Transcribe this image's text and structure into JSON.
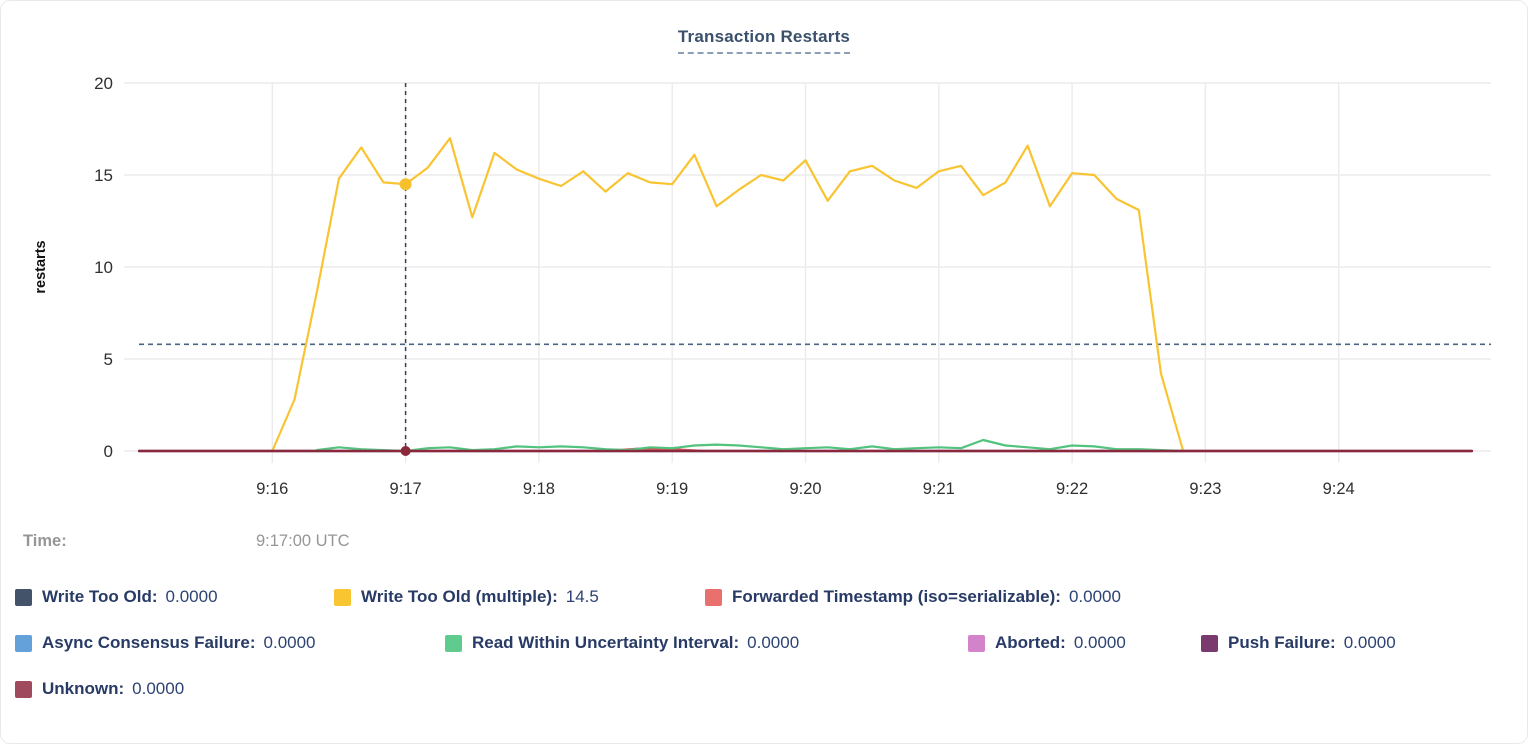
{
  "title": "Transaction Restarts",
  "hover": {
    "time_label": "Time:",
    "time_value": "9:17:00 UTC"
  },
  "colors": {
    "title": "#3b506b",
    "grid": "#ebebeb",
    "tick_text": "#2f2f2f",
    "crosshair": "#31435c",
    "reference_line": "#4a6584",
    "time_text": "#969696",
    "legend_text": "#283a66"
  },
  "legend": {
    "rows": [
      [
        {
          "label": "Write Too Old:",
          "value": "0.0000",
          "color": "#42536a"
        },
        {
          "label": "Write Too Old (multiple):",
          "value": "14.5",
          "color": "#f9c531"
        },
        {
          "label": "Forwarded Timestamp (iso=serializable):",
          "value": "0.0000",
          "color": "#e9706d"
        }
      ],
      [
        {
          "label": "Async Consensus Failure:",
          "value": "0.0000",
          "color": "#64a0d9"
        },
        {
          "label": "Read Within Uncertainty Interval:",
          "value": "0.0000",
          "color": "#5fcb8e"
        },
        {
          "label": "Aborted:",
          "value": "0.0000",
          "color": "#d283c9"
        },
        {
          "label": "Push Failure:",
          "value": "0.0000",
          "color": "#7a3a6e"
        }
      ],
      [
        {
          "label": "Unknown:",
          "value": "0.0000",
          "color": "#a04a5d"
        }
      ]
    ]
  },
  "chart_data": {
    "type": "line",
    "title": "Transaction Restarts",
    "ylabel": "restarts",
    "ylim": [
      0,
      20
    ],
    "y_ticks": [
      0,
      5,
      10,
      15,
      20
    ],
    "x_tick_labels": [
      "9:16",
      "9:17",
      "9:18",
      "9:19",
      "9:20",
      "9:21",
      "9:22",
      "9:23",
      "9:24"
    ],
    "x_domain_utc": [
      "9:15:00",
      "9:25:00"
    ],
    "grid": true,
    "legend_position": "bottom",
    "reference_line_y": 5.8,
    "crosshair": {
      "time": "9:17:00 UTC",
      "t_s": 120
    },
    "series": [
      {
        "name": "Write Too Old",
        "color": "#42536a",
        "points": [
          [
            0,
            0
          ],
          [
            600,
            0
          ]
        ]
      },
      {
        "name": "Write Too Old (multiple)",
        "color": "#f9c531",
        "line_color": "#f9c431",
        "start_s": 60,
        "step_s": 10,
        "values": [
          0,
          2.8,
          8.6,
          14.8,
          16.5,
          14.6,
          14.5,
          15.4,
          17,
          12.7,
          16.2,
          15.3,
          14.8,
          14.4,
          15.2,
          14.1,
          15.1,
          14.6,
          14.5,
          16.1,
          13.3,
          14.2,
          15,
          14.7,
          15.8,
          13.6,
          15.2,
          15.5,
          14.7,
          14.3,
          15.2,
          15.5,
          13.9,
          14.6,
          16.6,
          13.3,
          15.1,
          15,
          13.7,
          13.1,
          4.2,
          0
        ]
      },
      {
        "name": "Forwarded Timestamp (iso=serializable)",
        "color": "#e9706d",
        "line_color": "#d94f4f",
        "points": [
          [
            0,
            0
          ],
          [
            210,
            0
          ],
          [
            225,
            0.13
          ],
          [
            240,
            0.1
          ],
          [
            255,
            0
          ],
          [
            600,
            0
          ]
        ]
      },
      {
        "name": "Async Consensus Failure",
        "color": "#64a0d9",
        "points": [
          [
            0,
            0
          ],
          [
            600,
            0
          ]
        ]
      },
      {
        "name": "Read Within Uncertainty Interval",
        "color": "#5fcb8e",
        "line_color": "#52c37d",
        "start_s": 80,
        "step_s": 10,
        "values": [
          0.05,
          0.2,
          0.1,
          0.05,
          0,
          0.15,
          0.2,
          0.05,
          0.1,
          0.25,
          0.2,
          0.25,
          0.2,
          0.1,
          0.05,
          0.2,
          0.15,
          0.3,
          0.35,
          0.3,
          0.2,
          0.1,
          0.15,
          0.2,
          0.1,
          0.25,
          0.1,
          0.15,
          0.2,
          0.15,
          0.6,
          0.3,
          0.2,
          0.1,
          0.3,
          0.25,
          0.1,
          0.1,
          0.05,
          0
        ]
      },
      {
        "name": "Aborted",
        "color": "#d283c9",
        "points": [
          [
            0,
            0
          ],
          [
            600,
            0
          ]
        ]
      },
      {
        "name": "Push Failure",
        "color": "#7a3a6e",
        "points": [
          [
            0,
            0
          ],
          [
            600,
            0
          ]
        ]
      },
      {
        "name": "Unknown",
        "color": "#a04a5d",
        "line_color": "#8b2839",
        "points": [
          [
            0,
            0
          ],
          [
            600,
            0
          ]
        ]
      }
    ],
    "markers": [
      {
        "series": "Write Too Old (multiple)",
        "t_s": 120,
        "value": 14.5,
        "color": "#f6c02c",
        "r": 6
      },
      {
        "series": "Unknown",
        "t_s": 120,
        "value": 0,
        "color": "#8b2839",
        "r": 5
      }
    ]
  }
}
